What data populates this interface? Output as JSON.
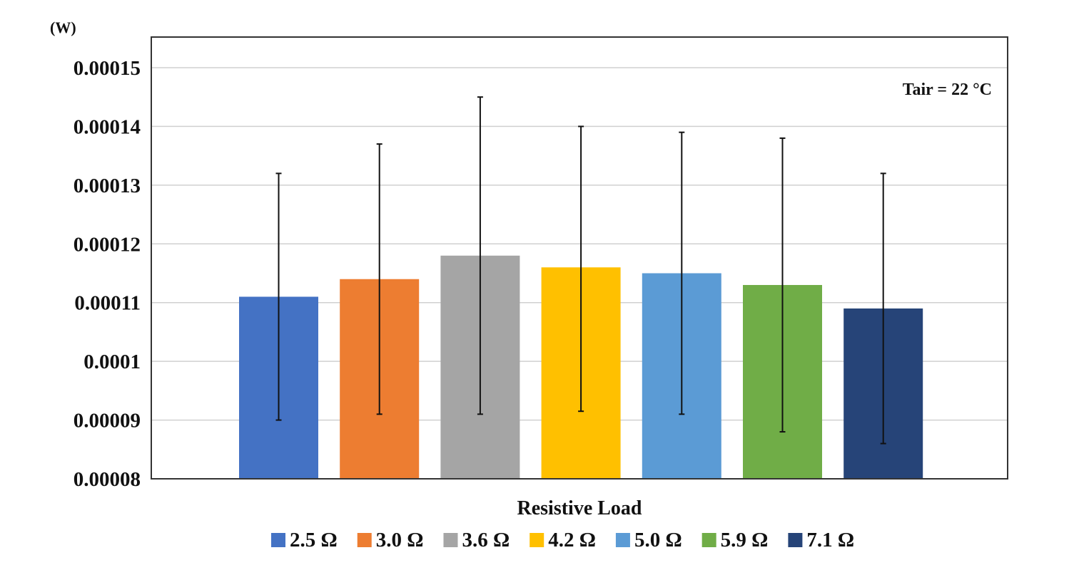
{
  "chart_data": {
    "type": "bar",
    "title": "",
    "xlabel": "Resistive Load",
    "ylabel": "(W)",
    "ylim": [
      8e-05,
      0.000155
    ],
    "yticks": [
      "0.00008",
      "0.00009",
      "0.0001",
      "0.00011",
      "0.00012",
      "0.00013",
      "0.00014",
      "0.00015"
    ],
    "ytick_values": [
      8e-05,
      9e-05,
      0.0001,
      0.00011,
      0.00012,
      0.00013,
      0.00014,
      0.00015
    ],
    "grid": true,
    "legend_position": "bottom",
    "annotation": "Tair = 22 °C",
    "series": [
      {
        "name": "2.5 Ω",
        "value": 0.000111,
        "err_low": 9e-05,
        "err_high": 0.000132,
        "color": "#4472C4"
      },
      {
        "name": "3.0 Ω",
        "value": 0.000114,
        "err_low": 9.1e-05,
        "err_high": 0.000137,
        "color": "#ED7D31"
      },
      {
        "name": "3.6 Ω",
        "value": 0.000118,
        "err_low": 9.1e-05,
        "err_high": 0.000145,
        "color": "#A5A5A5"
      },
      {
        "name": "4.2 Ω",
        "value": 0.000116,
        "err_low": 9.15e-05,
        "err_high": 0.00014,
        "color": "#FFC000"
      },
      {
        "name": "5.0 Ω",
        "value": 0.000115,
        "err_low": 9.1e-05,
        "err_high": 0.000139,
        "color": "#5B9BD5"
      },
      {
        "name": "5.9 Ω",
        "value": 0.000113,
        "err_low": 8.8e-05,
        "err_high": 0.000138,
        "color": "#70AD47"
      },
      {
        "name": "7.1 Ω",
        "value": 0.000109,
        "err_low": 8.6e-05,
        "err_high": 0.000132,
        "color": "#264478"
      }
    ]
  }
}
